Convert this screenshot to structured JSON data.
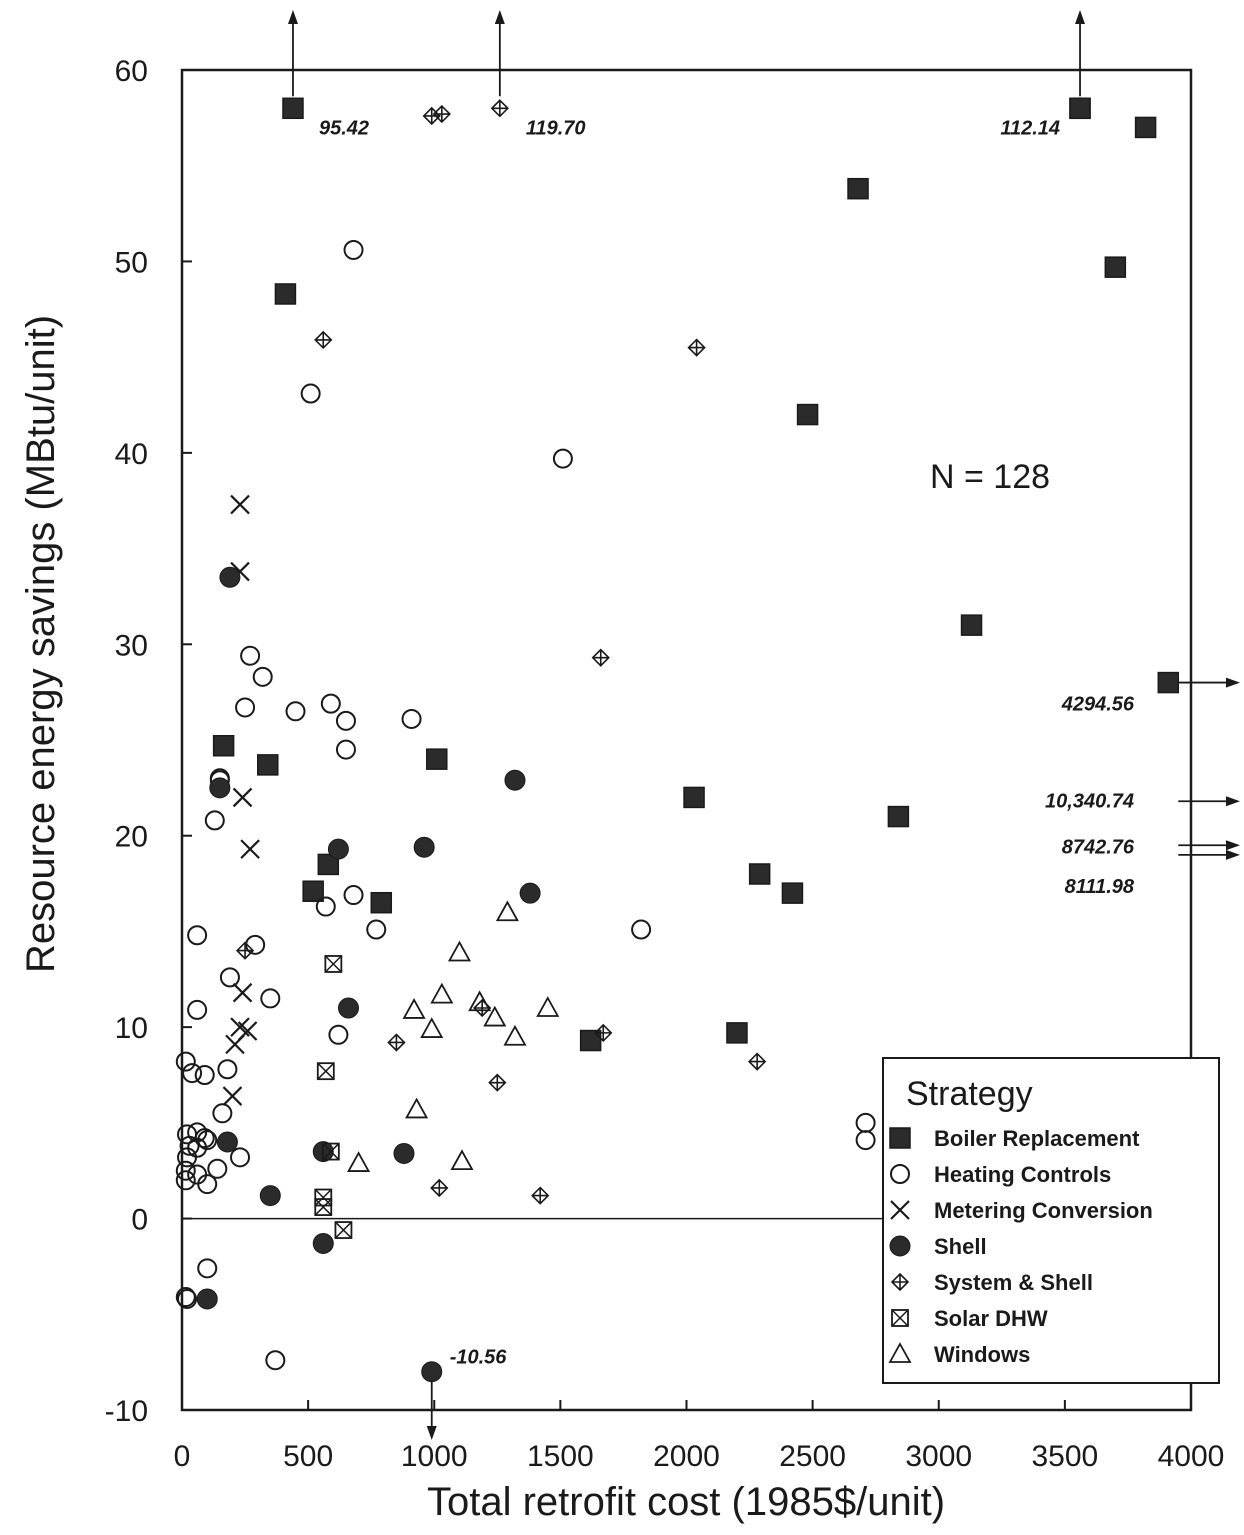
{
  "chart_data": {
    "type": "scatter",
    "xlabel": "Total retrofit cost (1985$/unit)",
    "ylabel": "Resource energy savings (MBtu/unit)",
    "xlim": [
      0,
      4000
    ],
    "ylim": [
      -10,
      60
    ],
    "x_ticks": [
      "0",
      "500",
      "1000",
      "1500",
      "2000",
      "2500",
      "3000",
      "3500",
      "4000"
    ],
    "y_ticks": [
      "-10",
      "0",
      "10",
      "20",
      "30",
      "40",
      "50",
      "60"
    ],
    "annotation": "N = 128",
    "legend": {
      "title": "Strategy",
      "position": "bottom-right"
    },
    "series": [
      {
        "name": "Boiler Replacement",
        "marker": "filled-square",
        "x": [
          440,
          410,
          165,
          340,
          1010,
          520,
          580,
          790,
          2030,
          2200,
          1620,
          2290,
          2420,
          2480,
          2840,
          3130,
          3560,
          3820,
          3700,
          3560,
          2680,
          3910
        ],
        "y": [
          58,
          48.3,
          24.7,
          23.7,
          24,
          17.1,
          18.5,
          16.5,
          22,
          9.7,
          9.3,
          18,
          17,
          42,
          21,
          31,
          58,
          57,
          49.7,
          58,
          53.8,
          28
        ]
      },
      {
        "name": "Heating Controls",
        "marker": "open-circle",
        "x": [
          680,
          510,
          1510,
          1820,
          270,
          320,
          250,
          150,
          150,
          130,
          450,
          590,
          650,
          650,
          910,
          680,
          570,
          770,
          620,
          350,
          290,
          60,
          190,
          60,
          60,
          15,
          40,
          90,
          180,
          160,
          90,
          100,
          60,
          30,
          60,
          230,
          140,
          20,
          15,
          100,
          15,
          15,
          20,
          100,
          20,
          370,
          2710,
          2710
        ],
        "y": [
          50.6,
          43.1,
          39.7,
          15.1,
          29.4,
          28.3,
          26.7,
          22.9,
          23,
          20.8,
          26.5,
          26.9,
          24.5,
          26,
          26.1,
          16.9,
          16.3,
          15.1,
          9.6,
          11.5,
          14.3,
          14.8,
          12.6,
          10.9,
          4.5,
          8.2,
          7.6,
          7.5,
          7.8,
          5.5,
          4.2,
          4.1,
          3.7,
          3.8,
          2.3,
          3.2,
          2.6,
          3.2,
          2,
          1.8,
          2.5,
          -4.1,
          4.4,
          -2.6,
          -4.2,
          -7.4,
          5,
          4.1
        ]
      },
      {
        "name": "Metering Conversion",
        "marker": "cross",
        "x": [
          230,
          230,
          240,
          270,
          240,
          230,
          210,
          260,
          200
        ],
        "y": [
          37.3,
          33.8,
          22,
          19.3,
          11.8,
          10,
          9.1,
          9.8,
          6.4
        ]
      },
      {
        "name": "Shell",
        "marker": "filled-circle",
        "x": [
          190,
          150,
          1320,
          620,
          960,
          1380,
          660,
          880,
          350,
          560,
          560,
          100,
          990,
          180
        ],
        "y": [
          33.5,
          22.5,
          22.9,
          19.3,
          19.4,
          17,
          11,
          3.4,
          1.2,
          -1.3,
          3.5,
          -4.2,
          -8,
          4
        ]
      },
      {
        "name": "System & Shell",
        "marker": "diamond-cross",
        "x": [
          990,
          1030,
          560,
          2040,
          1660,
          250,
          850,
          1250,
          1190,
          1670,
          2280,
          1020,
          1420,
          1260
        ],
        "y": [
          57.6,
          57.7,
          45.9,
          45.5,
          29.3,
          14,
          9.2,
          7.1,
          11,
          9.7,
          8.2,
          1.6,
          1.2,
          58
        ]
      },
      {
        "name": "Solar DHW",
        "marker": "boxed-x",
        "x": [
          600,
          570,
          590,
          560,
          560,
          640
        ],
        "y": [
          13.3,
          7.7,
          3.5,
          1.1,
          0.6,
          -0.6
        ]
      },
      {
        "name": "Windows",
        "marker": "open-triangle",
        "x": [
          1290,
          1100,
          1030,
          920,
          1240,
          1320,
          1450,
          990,
          700,
          1110,
          930,
          1180
        ],
        "y": [
          16,
          13.9,
          11.7,
          10.9,
          10.5,
          9.5,
          11,
          9.9,
          2.9,
          3,
          5.7,
          11.3
        ]
      }
    ],
    "offscale_annotations": [
      {
        "label": "95.42",
        "x": 440,
        "y": 58,
        "direction": "up"
      },
      {
        "label": "119.70",
        "x": 1260,
        "y": 58,
        "direction": "up"
      },
      {
        "label": "112.14",
        "x": 3560,
        "y": 58,
        "direction": "up"
      },
      {
        "label": "4294.56",
        "x": 3910,
        "y": 28,
        "direction": "right"
      },
      {
        "label": "10,340.74",
        "x": 3910,
        "y": 21.8,
        "direction": "right"
      },
      {
        "label": "8742.76",
        "x": 3910,
        "y": 19.5,
        "direction": "right"
      },
      {
        "label": "8111.98",
        "x": 3910,
        "y": 19,
        "direction": "right"
      },
      {
        "label": "-10.56",
        "x": 990,
        "y": -8,
        "direction": "down"
      }
    ]
  }
}
